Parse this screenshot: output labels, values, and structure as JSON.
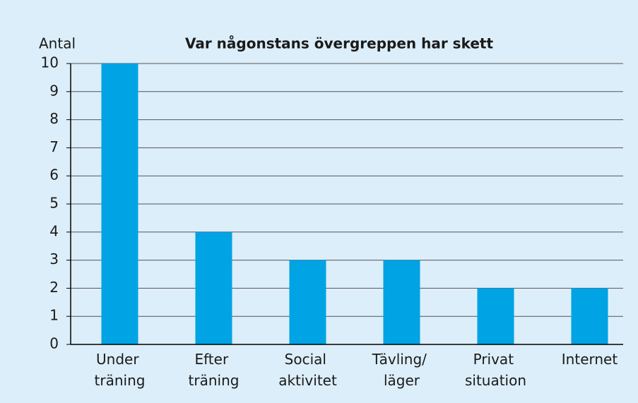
{
  "chart_data": {
    "type": "bar",
    "title": "Var någonstans övergreppen har skett",
    "ylabel": "Antal",
    "categories": [
      "Under träning",
      "Efter träning",
      "Social aktivitet",
      "Tävling/ läger",
      "Privat situation",
      "Internet"
    ],
    "values": [
      10,
      4,
      3,
      3,
      2,
      2
    ],
    "color": "#00a3e4",
    "ylim": [
      0,
      10
    ],
    "yticks": [
      0,
      1,
      2,
      3,
      4,
      5,
      6,
      7,
      8,
      9,
      10
    ],
    "grid": true
  }
}
